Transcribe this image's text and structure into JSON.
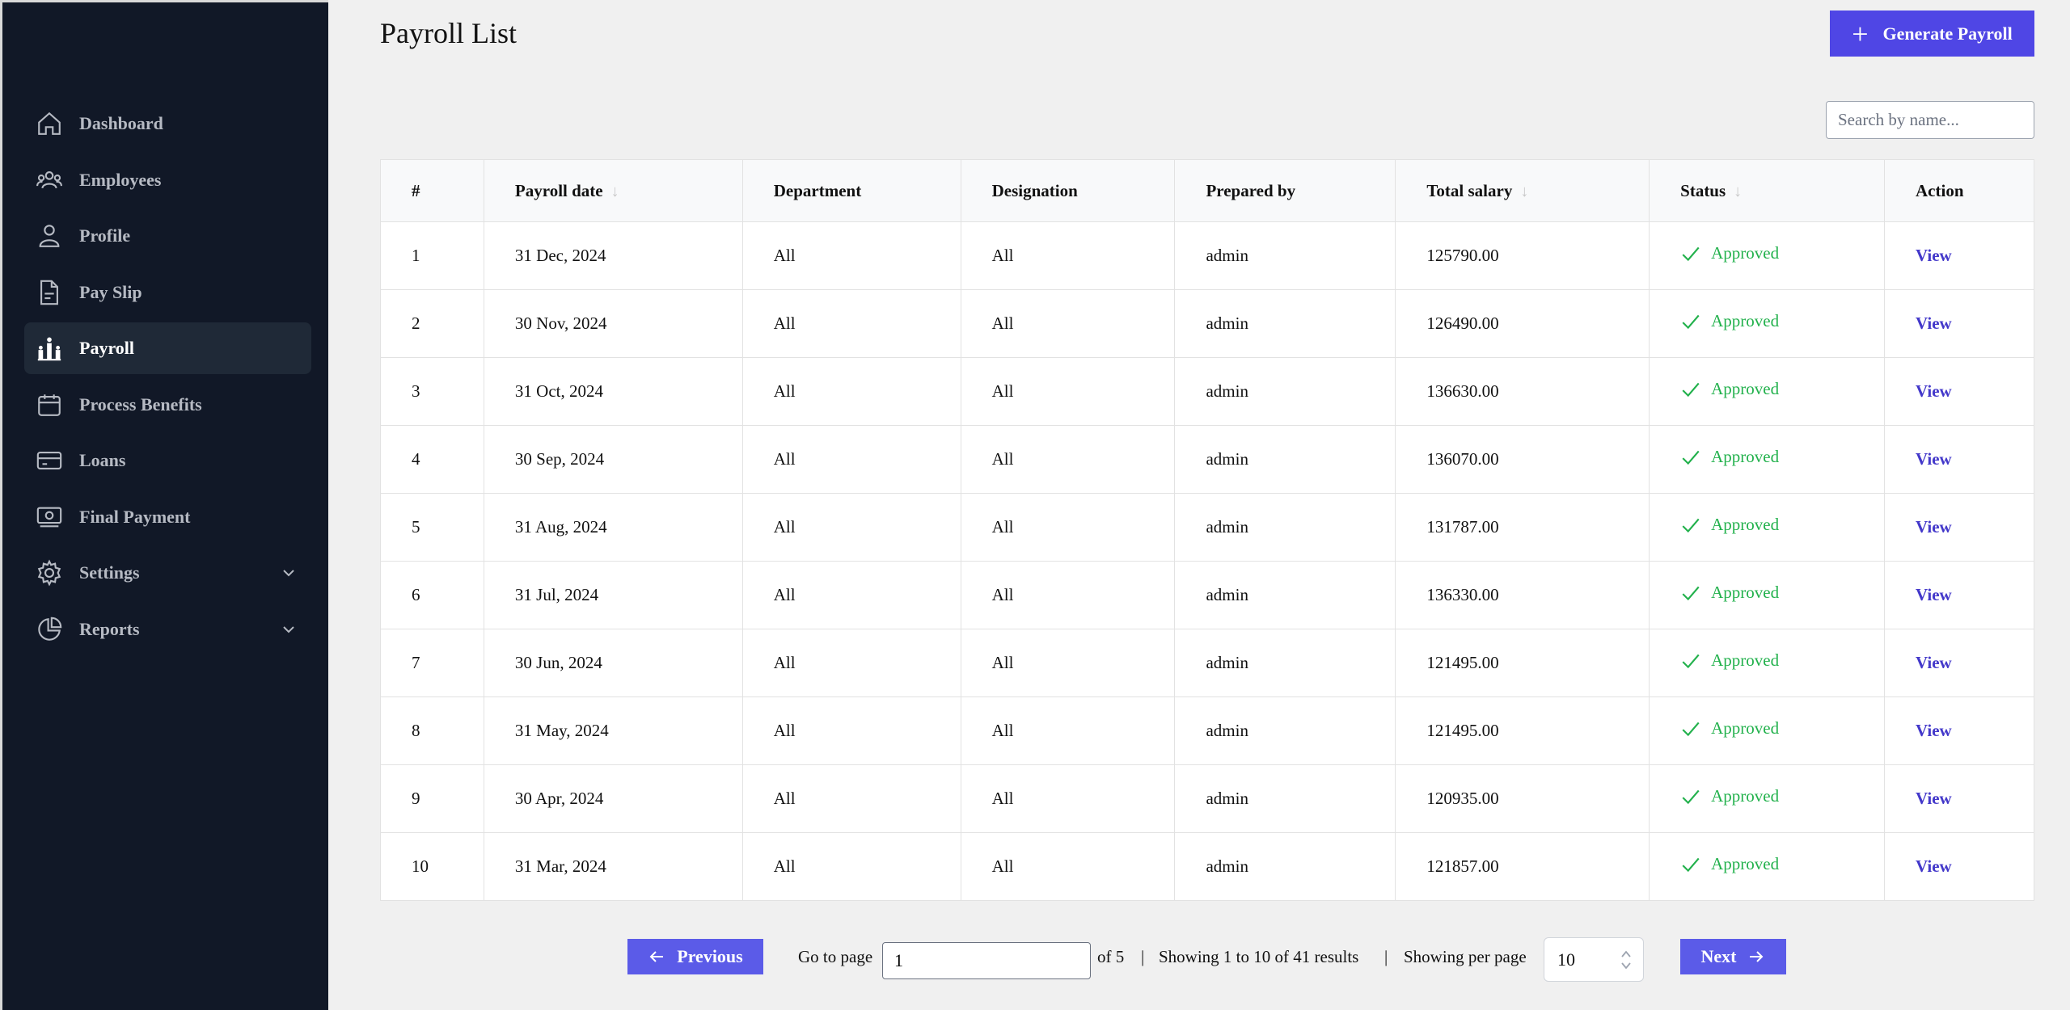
{
  "sidebar": {
    "items": [
      {
        "label": "Dashboard",
        "icon": "home-icon"
      },
      {
        "label": "Employees",
        "icon": "users-icon"
      },
      {
        "label": "Profile",
        "icon": "user-icon"
      },
      {
        "label": "Pay Slip",
        "icon": "document-icon"
      },
      {
        "label": "Payroll",
        "icon": "payroll-icon",
        "active": true
      },
      {
        "label": "Process Benefits",
        "icon": "calendar-icon"
      },
      {
        "label": "Loans",
        "icon": "card-icon"
      },
      {
        "label": "Final Payment",
        "icon": "cash-icon"
      },
      {
        "label": "Settings",
        "icon": "gear-icon",
        "expandable": true
      },
      {
        "label": "Reports",
        "icon": "pie-chart-icon",
        "expandable": true
      }
    ]
  },
  "header": {
    "title": "Payroll List",
    "generate_label": "Generate Payroll"
  },
  "search": {
    "placeholder": "Search by name..."
  },
  "table": {
    "columns": [
      "#",
      "Payroll date",
      "Department",
      "Designation",
      "Prepared by",
      "Total salary",
      "Status",
      "Action"
    ],
    "rows": [
      {
        "no": "1",
        "date": "31 Dec, 2024",
        "department": "All",
        "designation": "All",
        "prepared_by": "admin",
        "total": "125790.00",
        "status": "Approved",
        "action": "View"
      },
      {
        "no": "2",
        "date": "30 Nov, 2024",
        "department": "All",
        "designation": "All",
        "prepared_by": "admin",
        "total": "126490.00",
        "status": "Approved",
        "action": "View"
      },
      {
        "no": "3",
        "date": "31 Oct, 2024",
        "department": "All",
        "designation": "All",
        "prepared_by": "admin",
        "total": "136630.00",
        "status": "Approved",
        "action": "View"
      },
      {
        "no": "4",
        "date": "30 Sep, 2024",
        "department": "All",
        "designation": "All",
        "prepared_by": "admin",
        "total": "136070.00",
        "status": "Approved",
        "action": "View"
      },
      {
        "no": "5",
        "date": "31 Aug, 2024",
        "department": "All",
        "designation": "All",
        "prepared_by": "admin",
        "total": "131787.00",
        "status": "Approved",
        "action": "View"
      },
      {
        "no": "6",
        "date": "31 Jul, 2024",
        "department": "All",
        "designation": "All",
        "prepared_by": "admin",
        "total": "136330.00",
        "status": "Approved",
        "action": "View"
      },
      {
        "no": "7",
        "date": "30 Jun, 2024",
        "department": "All",
        "designation": "All",
        "prepared_by": "admin",
        "total": "121495.00",
        "status": "Approved",
        "action": "View"
      },
      {
        "no": "8",
        "date": "31 May, 2024",
        "department": "All",
        "designation": "All",
        "prepared_by": "admin",
        "total": "121495.00",
        "status": "Approved",
        "action": "View"
      },
      {
        "no": "9",
        "date": "30 Apr, 2024",
        "department": "All",
        "designation": "All",
        "prepared_by": "admin",
        "total": "120935.00",
        "status": "Approved",
        "action": "View"
      },
      {
        "no": "10",
        "date": "31 Mar, 2024",
        "department": "All",
        "designation": "All",
        "prepared_by": "admin",
        "total": "121857.00",
        "status": "Approved",
        "action": "View"
      }
    ]
  },
  "pagination": {
    "previous_label": "Previous",
    "goto_label": "Go to page",
    "current_page": "1",
    "of_label": "of 5",
    "separator": "|",
    "showing_text": "Showing 1 to 10 of 41 results",
    "per_page_label": "Showing per page",
    "per_page_value": "10",
    "next_label": "Next"
  },
  "colors": {
    "sidebar_bg": "#111827",
    "accent": "#4f46e5",
    "status_approved": "#22b14c",
    "link": "#4338ca"
  }
}
